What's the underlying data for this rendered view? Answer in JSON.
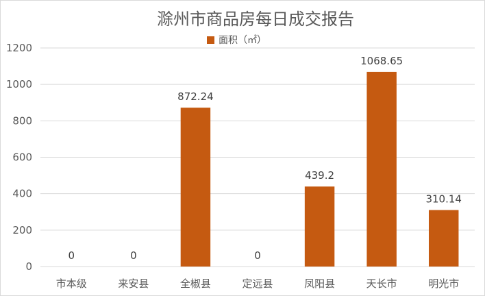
{
  "chart_data": {
    "type": "bar",
    "title": "滁州市商品房每日成交报告",
    "xlabel": "",
    "ylabel": "",
    "categories": [
      "市本级",
      "来安县",
      "全椒县",
      "定远县",
      "凤阳县",
      "天长市",
      "明光市"
    ],
    "series": [
      {
        "name": "面积（㎡）",
        "values": [
          0,
          0,
          872.24,
          0,
          439.2,
          1068.65,
          310.14
        ],
        "labels": [
          "0",
          "0",
          "872.24",
          "0",
          "439.2",
          "1068.65",
          "310.14"
        ]
      }
    ],
    "ylim": [
      0,
      1200
    ],
    "yticks": [
      0,
      200,
      400,
      600,
      800,
      1000,
      1200
    ],
    "ytick_labels": [
      "0",
      "200",
      "400",
      "600",
      "800",
      "1000",
      "1200"
    ],
    "grid": true,
    "legend": "top-center",
    "colors": {
      "bar": "#C55A11",
      "grid": "#d9d9d9",
      "text": "#595959"
    }
  }
}
